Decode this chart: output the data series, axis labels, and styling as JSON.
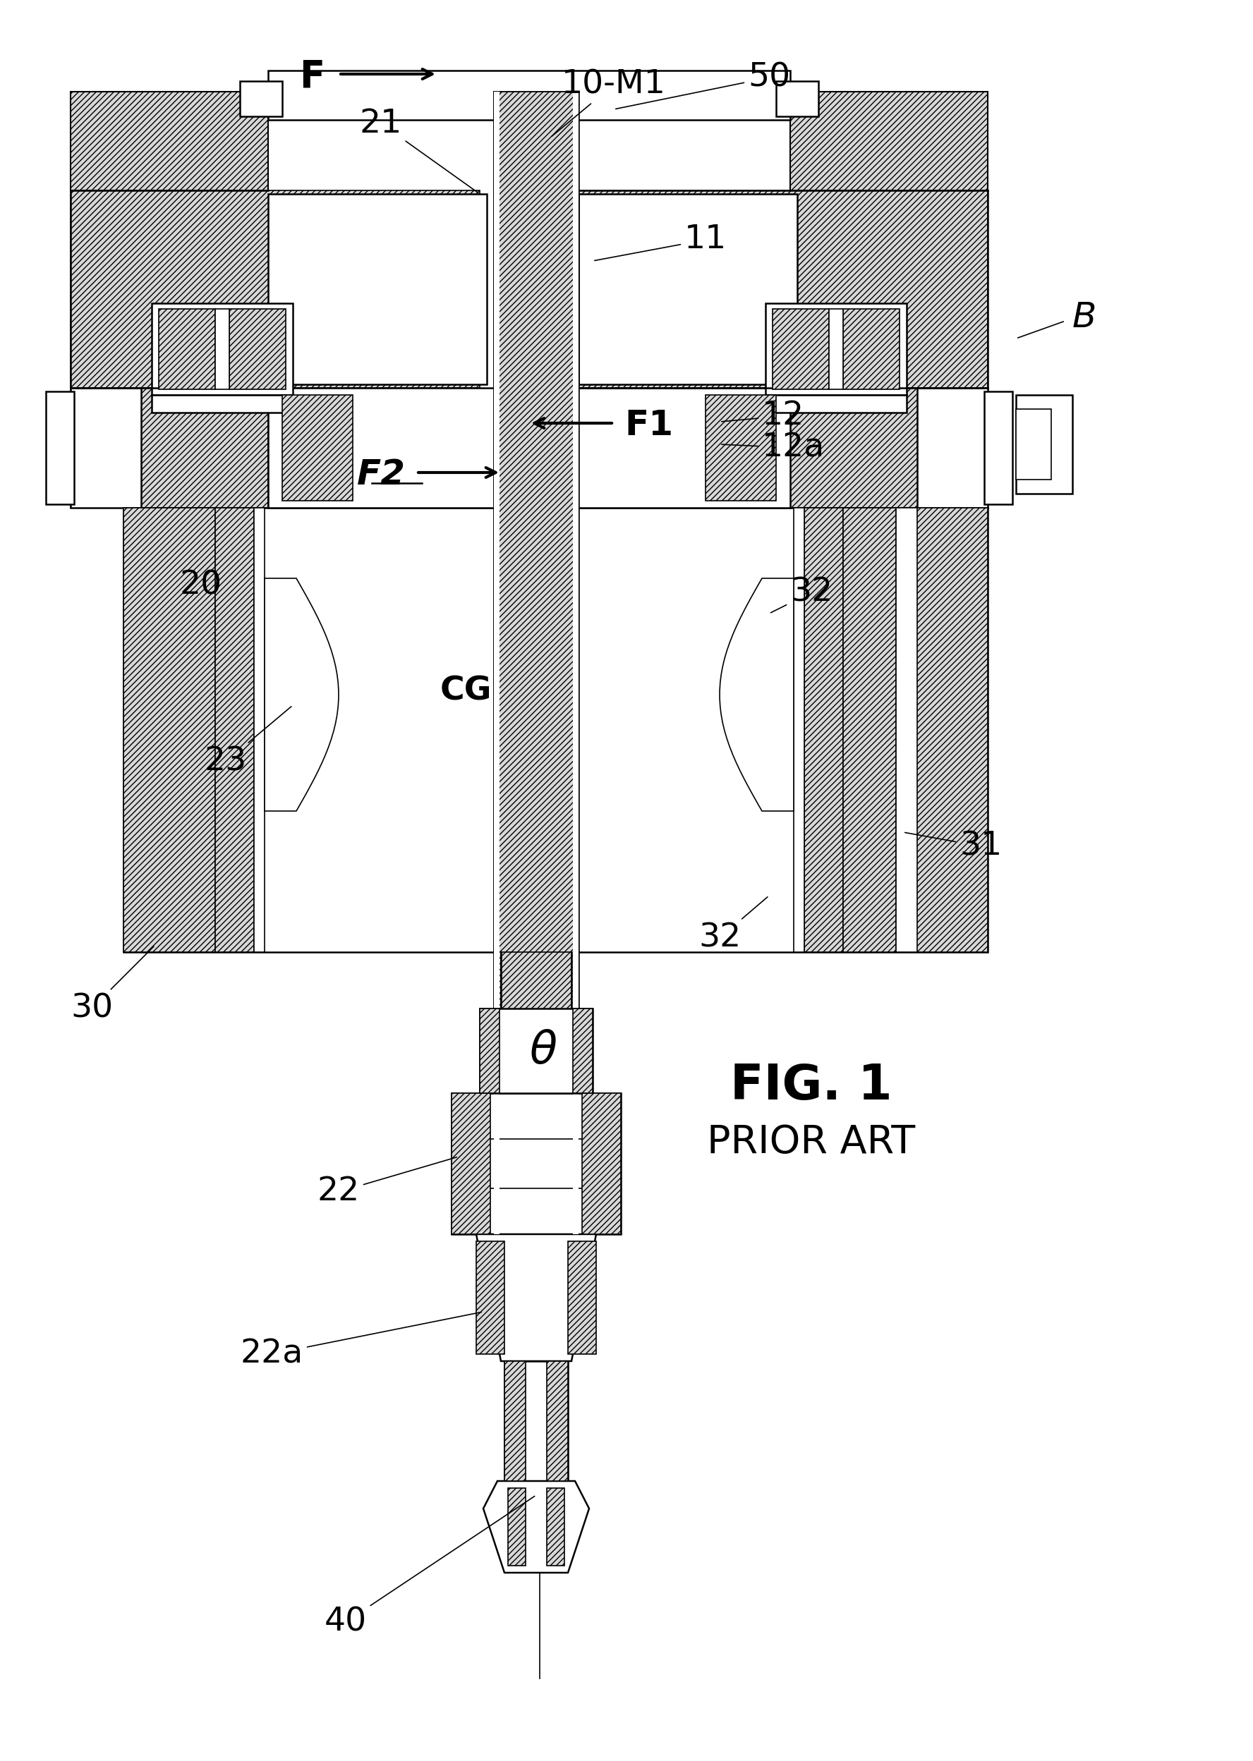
{
  "bg_color": "#ffffff",
  "line_color": "#000000",
  "hatch_light": "#cccccc",
  "hatch_mid": "#bbbbbb",
  "fig_label": "FIG. 1",
  "prior_art_label": "PRIOR ART",
  "labels": {
    "F": "F",
    "50": "50",
    "10-M1": "10-M1",
    "21": "21",
    "11": "11",
    "B": "B",
    "F1": "F1",
    "F2": "F2",
    "12": "12",
    "12a": "12a",
    "20": "20",
    "CG": "CG",
    "23": "23",
    "32a": "32",
    "31": "31",
    "32b": "32",
    "30": "30",
    "theta": "θ",
    "22": "22",
    "22a": "22a",
    "40": "40"
  }
}
